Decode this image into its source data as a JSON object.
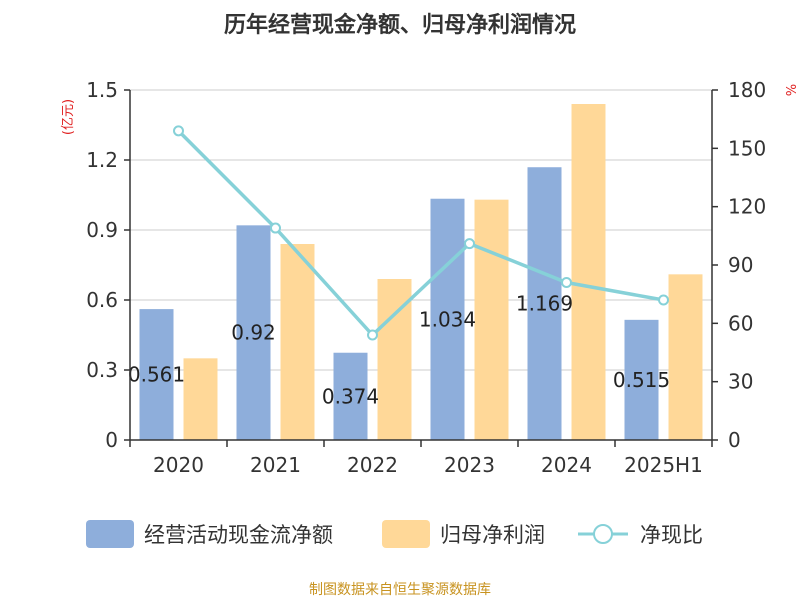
{
  "chart_data": {
    "type": "bar",
    "title": "历年经营现金净额、归母净利润情况",
    "categories": [
      "2020",
      "2021",
      "2022",
      "2023",
      "2024",
      "2025H1"
    ],
    "series": [
      {
        "name": "经营活动现金流净额",
        "kind": "bar",
        "axis": "left",
        "color": "#8eaedb",
        "values": [
          0.561,
          0.92,
          0.374,
          1.034,
          1.169,
          0.515
        ],
        "labels": [
          "0.561",
          "0.92",
          "0.374",
          "1.034",
          "1.169",
          "0.515"
        ]
      },
      {
        "name": "归母净利润",
        "kind": "bar",
        "axis": "left",
        "color": "#ffd898",
        "values": [
          0.35,
          0.84,
          0.69,
          1.03,
          1.44,
          0.71
        ]
      },
      {
        "name": "净现比",
        "kind": "line",
        "axis": "right",
        "color": "#86d1d8",
        "values": [
          159,
          109,
          54,
          101,
          81,
          72
        ]
      }
    ],
    "y_left": {
      "unit": "(亿元)",
      "ticks": [
        "0",
        "0.3",
        "0.6",
        "0.9",
        "1.2",
        "1.5"
      ],
      "min": 0,
      "max": 1.5
    },
    "y_right": {
      "unit": "%",
      "ticks": [
        "0",
        "30",
        "60",
        "90",
        "120",
        "150",
        "180"
      ],
      "min": 0,
      "max": 180
    },
    "grid": true,
    "legend_position": "bottom"
  },
  "source": "制图数据来自恒生聚源数据库"
}
